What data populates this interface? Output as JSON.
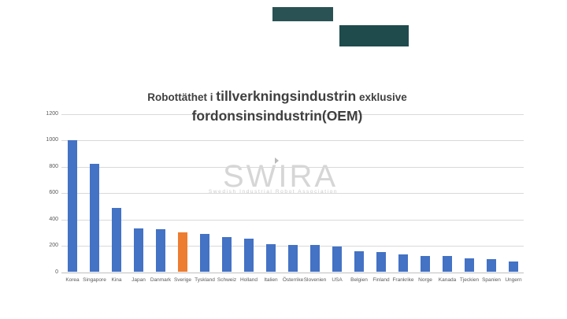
{
  "slide": {
    "decor": {
      "rect_small_color": "#2a5254",
      "rect_large_color": "#1f4b4d"
    },
    "title": {
      "part1": "Robottäthet i ",
      "part2": "tillverkningsindustrin",
      "part3": " exklusive",
      "line2": "fordonsinsindustrin(OEM)"
    },
    "watermark": {
      "logo": "SWIRA",
      "tagline": "Swedish Industrial Robot Association",
      "color": "#d6d6d6"
    }
  },
  "chart_data": {
    "type": "bar",
    "title": "Robottäthet i tillverkningsindustrin exklusive fordonsinsindustrin(OEM)",
    "categories": [
      "Korea",
      "Singapore",
      "Kina",
      "Japan",
      "Danmark",
      "Sverige",
      "Tyskland",
      "Schweiz",
      "Holland",
      "Italien",
      "Österrike",
      "Slovenien",
      "USA",
      "Belgien",
      "Finland",
      "Frankrike",
      "Norge",
      "Kanada",
      "Tjeckien",
      "Spanien",
      "Ungern"
    ],
    "values": [
      1000,
      820,
      490,
      335,
      325,
      305,
      290,
      265,
      255,
      210,
      205,
      205,
      195,
      160,
      155,
      135,
      125,
      120,
      105,
      100,
      80
    ],
    "highlight_category": "Sverige",
    "bar_color": "#4472C4",
    "highlight_color": "#ED7D31",
    "xlabel": "",
    "ylabel": "",
    "ylim": [
      0,
      1200
    ],
    "yticks": [
      0,
      200,
      400,
      600,
      800,
      1000,
      1200
    ],
    "grid": true,
    "gridline_color": "#d9d9d9",
    "axis_line_color": "#bfbfbf",
    "tick_label_color": "#595959",
    "legend": false
  }
}
